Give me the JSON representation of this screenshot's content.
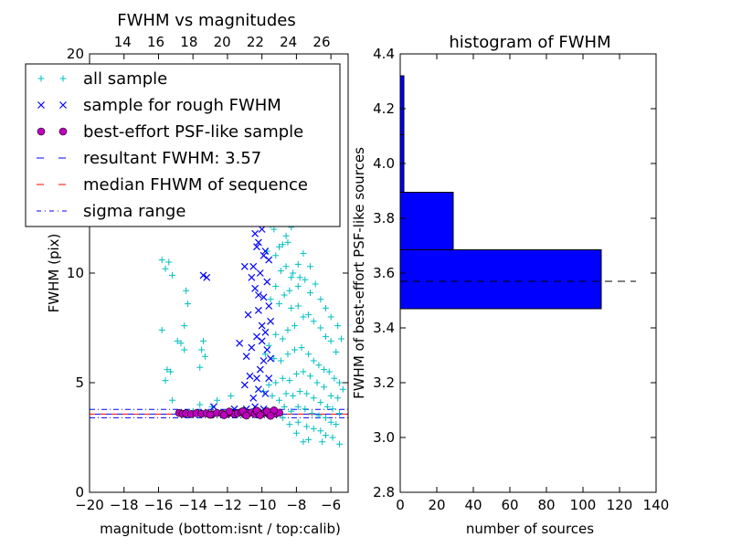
{
  "chart_data": [
    {
      "type": "scatter",
      "title": "FWHM vs magnitudes",
      "xlabel": "magnitude (bottom:isnt / top:calib)",
      "ylabel": "FWHM (pix)",
      "xlim": [
        -20,
        -5
      ],
      "ylim": [
        0,
        20
      ],
      "top_xlim": [
        12,
        27.6
      ],
      "x_ticks": [
        "−20",
        "−18",
        "−16",
        "−14",
        "−12",
        "−10",
        "−8",
        "−6"
      ],
      "x_tick_values": [
        -20,
        -18,
        -16,
        -14,
        -12,
        -10,
        -8,
        -6
      ],
      "top_x_ticks": [
        "14",
        "16",
        "18",
        "20",
        "22",
        "24",
        "26"
      ],
      "top_x_tick_values": [
        14,
        16,
        18,
        20,
        22,
        24,
        26
      ],
      "y_ticks": [
        "0",
        "5",
        "10",
        "20"
      ],
      "y_tick_values": [
        0,
        5,
        10,
        20
      ],
      "legend": {
        "placement": "top-left",
        "entries": [
          {
            "marker": "+",
            "label": "all sample",
            "color": "#00bfbf"
          },
          {
            "marker": "×",
            "label": "sample for rough FWHM",
            "color": "#0000ff"
          },
          {
            "marker": "●",
            "label": "best-effort PSF-like sample",
            "color": "#bf00bf"
          },
          {
            "marker": "dash",
            "label": "resultant FWHM: 3.57",
            "color": "#0000ff"
          },
          {
            "marker": "dash",
            "label": "median FHWM of sequence",
            "color": "#ff0000"
          },
          {
            "marker": "dashdot",
            "label": "sigma range",
            "color": "#0000ff"
          }
        ]
      },
      "lines": {
        "resultant_fwhm": 3.57,
        "median_fwhm": 3.57,
        "sigma_range": [
          3.4,
          3.78
        ]
      },
      "series": [
        {
          "name": "all sample",
          "points": [
            [
              -15.8,
              10.6
            ],
            [
              -15.6,
              10.2
            ],
            [
              -15.4,
              10.5
            ],
            [
              -15.2,
              9.9
            ],
            [
              -14.4,
              9.2
            ],
            [
              -14.3,
              8.6
            ],
            [
              -15.8,
              7.4
            ],
            [
              -14.5,
              7.6
            ],
            [
              -14.7,
              6.8
            ],
            [
              -14.5,
              6.5
            ],
            [
              -14.9,
              6.9
            ],
            [
              -13.4,
              6.9
            ],
            [
              -13.5,
              6.5
            ],
            [
              -13.3,
              6.2
            ],
            [
              -15.5,
              5.6
            ],
            [
              -15.3,
              5.5
            ],
            [
              -13.6,
              5.7
            ],
            [
              -15.6,
              5.1
            ],
            [
              -15.2,
              4.2
            ],
            [
              -12.6,
              4.2
            ],
            [
              -12.9,
              3.9
            ],
            [
              -11.8,
              4.4
            ],
            [
              -13.6,
              4.0
            ],
            [
              -14.0,
              3.7
            ],
            [
              -9.9,
              12.6
            ],
            [
              -9.5,
              12.2
            ],
            [
              -9.7,
              11.0
            ],
            [
              -9.2,
              10.8
            ],
            [
              -8.8,
              11.3
            ],
            [
              -8.5,
              11.4
            ],
            [
              -8.3,
              12.1
            ],
            [
              -8.9,
              12.8
            ],
            [
              -9.3,
              12.0
            ],
            [
              -8.9,
              10.1
            ],
            [
              -8.6,
              10.3
            ],
            [
              -8.2,
              10.0
            ],
            [
              -7.8,
              9.8
            ],
            [
              -7.5,
              9.7
            ],
            [
              -7.2,
              9.1
            ],
            [
              -7.9,
              9.4
            ],
            [
              -8.4,
              9.2
            ],
            [
              -8.7,
              9.0
            ],
            [
              -9.2,
              9.4
            ],
            [
              -9.5,
              8.8
            ],
            [
              -9.0,
              8.6
            ],
            [
              -8.3,
              8.4
            ],
            [
              -7.9,
              8.5
            ],
            [
              -7.6,
              8.0
            ],
            [
              -7.3,
              8.1
            ],
            [
              -7.0,
              7.8
            ],
            [
              -6.6,
              7.5
            ],
            [
              -6.3,
              7.1
            ],
            [
              -6.0,
              6.9
            ],
            [
              -5.7,
              6.4
            ],
            [
              -8.1,
              7.6
            ],
            [
              -8.5,
              7.4
            ],
            [
              -8.8,
              7.0
            ],
            [
              -9.2,
              7.2
            ],
            [
              -9.6,
              6.7
            ],
            [
              -9.8,
              6.3
            ],
            [
              -9.3,
              6.1
            ],
            [
              -8.9,
              6.0
            ],
            [
              -8.5,
              6.3
            ],
            [
              -8.1,
              6.5
            ],
            [
              -7.7,
              6.6
            ],
            [
              -7.3,
              6.3
            ],
            [
              -7.0,
              6.0
            ],
            [
              -6.7,
              5.8
            ],
            [
              -6.4,
              5.6
            ],
            [
              -6.1,
              5.5
            ],
            [
              -5.8,
              5.2
            ],
            [
              -5.5,
              5.0
            ],
            [
              -5.3,
              4.7
            ],
            [
              -5.6,
              4.3
            ],
            [
              -6.0,
              4.4
            ],
            [
              -6.4,
              4.8
            ],
            [
              -6.8,
              5.0
            ],
            [
              -7.2,
              5.3
            ],
            [
              -7.6,
              5.5
            ],
            [
              -8.0,
              5.4
            ],
            [
              -8.4,
              5.1
            ],
            [
              -8.8,
              5.2
            ],
            [
              -9.2,
              5.0
            ],
            [
              -9.6,
              4.9
            ],
            [
              -9.9,
              4.6
            ],
            [
              -9.4,
              4.4
            ],
            [
              -9.0,
              4.2
            ],
            [
              -8.6,
              4.5
            ],
            [
              -8.2,
              4.4
            ],
            [
              -7.8,
              4.6
            ],
            [
              -7.4,
              4.5
            ],
            [
              -7.0,
              4.3
            ],
            [
              -6.6,
              4.1
            ],
            [
              -6.2,
              3.9
            ],
            [
              -5.9,
              3.8
            ],
            [
              -5.5,
              3.6
            ],
            [
              -8.7,
              3.9
            ],
            [
              -8.3,
              3.7
            ],
            [
              -7.9,
              3.9
            ],
            [
              -7.5,
              3.8
            ],
            [
              -7.1,
              3.6
            ],
            [
              -6.7,
              3.5
            ],
            [
              -6.3,
              3.4
            ],
            [
              -6.0,
              3.2
            ],
            [
              -5.7,
              3.1
            ],
            [
              -7.9,
              3.2
            ],
            [
              -7.4,
              3.0
            ],
            [
              -7.0,
              2.9
            ],
            [
              -6.6,
              2.8
            ],
            [
              -6.3,
              2.6
            ],
            [
              -5.9,
              2.5
            ],
            [
              -7.3,
              2.4
            ],
            [
              -6.5,
              2.3
            ],
            [
              -5.5,
              2.2
            ],
            [
              -7.6,
              2.3
            ],
            [
              -8.0,
              2.7
            ],
            [
              -8.4,
              3.1
            ],
            [
              -8.8,
              3.4
            ],
            [
              -9.2,
              3.6
            ],
            [
              -9.6,
              3.7
            ],
            [
              -8.3,
              9.8
            ],
            [
              -7.9,
              10.4
            ],
            [
              -8.6,
              11.7
            ],
            [
              -9.0,
              11.2
            ],
            [
              -7.6,
              10.9
            ],
            [
              -7.2,
              10.3
            ],
            [
              -6.9,
              9.5
            ],
            [
              -6.6,
              8.8
            ],
            [
              -6.3,
              8.4
            ],
            [
              -6.0,
              8.0
            ],
            [
              -5.6,
              7.6
            ],
            [
              -5.4,
              7.0
            ]
          ]
        },
        {
          "name": "sample for rough FWHM",
          "points": [
            [
              -13.4,
              9.9
            ],
            [
              -13.2,
              9.8
            ],
            [
              -10.8,
              8.1
            ],
            [
              -10.2,
              8.3
            ],
            [
              -10.0,
              7.6
            ],
            [
              -10.3,
              7.1
            ],
            [
              -10.6,
              6.6
            ],
            [
              -10.9,
              6.2
            ],
            [
              -11.3,
              6.8
            ],
            [
              -9.9,
              6.0
            ],
            [
              -10.1,
              5.6
            ],
            [
              -10.3,
              5.2
            ],
            [
              -10.7,
              5.3
            ],
            [
              -11.0,
              4.9
            ],
            [
              -10.2,
              4.7
            ],
            [
              -10.5,
              4.3
            ],
            [
              -9.8,
              4.5
            ],
            [
              -9.6,
              5.2
            ],
            [
              -9.9,
              12.8
            ],
            [
              -10.4,
              11.8
            ],
            [
              -10.2,
              11.4
            ],
            [
              -9.8,
              11.0
            ],
            [
              -9.6,
              10.6
            ],
            [
              -10.5,
              10.3
            ],
            [
              -10.1,
              10.0
            ],
            [
              -9.7,
              9.6
            ],
            [
              -10.4,
              9.3
            ],
            [
              -9.9,
              8.9
            ],
            [
              -9.6,
              8.5
            ],
            [
              -10.2,
              9.0
            ],
            [
              -9.5,
              7.8
            ],
            [
              -9.8,
              7.3
            ],
            [
              -10.0,
              6.9
            ],
            [
              -9.7,
              6.5
            ],
            [
              -9.5,
              6.1
            ],
            [
              -10.4,
              12.5
            ],
            [
              -10.0,
              12.0
            ],
            [
              -9.7,
              12.4
            ],
            [
              -10.3,
              11.2
            ],
            [
              -9.9,
              10.8
            ],
            [
              -10.6,
              9.8
            ],
            [
              -11.0,
              10.3
            ],
            [
              -12.8,
              3.9
            ],
            [
              -11.6,
              3.8
            ],
            [
              -10.9,
              3.8
            ],
            [
              -10.4,
              3.9
            ],
            [
              -9.9,
              3.8
            ]
          ]
        },
        {
          "name": "best-effort PSF-like sample",
          "points": [
            [
              -14.8,
              3.62
            ],
            [
              -14.6,
              3.58
            ],
            [
              -14.4,
              3.6
            ],
            [
              -14.1,
              3.57
            ],
            [
              -13.8,
              3.61
            ],
            [
              -13.5,
              3.58
            ],
            [
              -13.2,
              3.6
            ],
            [
              -12.9,
              3.56
            ],
            [
              -12.6,
              3.62
            ],
            [
              -12.3,
              3.59
            ],
            [
              -12.0,
              3.58
            ],
            [
              -11.8,
              3.63
            ],
            [
              -11.6,
              3.57
            ],
            [
              -11.4,
              3.61
            ],
            [
              -11.2,
              3.66
            ],
            [
              -11.0,
              3.55
            ],
            [
              -10.8,
              3.6
            ],
            [
              -10.6,
              3.64
            ],
            [
              -10.4,
              3.57
            ],
            [
              -10.2,
              3.62
            ],
            [
              -10.0,
              3.58
            ],
            [
              -9.8,
              3.65
            ],
            [
              -9.6,
              3.56
            ],
            [
              -9.4,
              3.61
            ],
            [
              -9.2,
              3.59
            ],
            [
              -9.0,
              3.63
            ],
            [
              -11.9,
              3.68
            ],
            [
              -11.1,
              3.7
            ],
            [
              -10.3,
              3.72
            ],
            [
              -9.7,
              3.69
            ],
            [
              -9.3,
              3.74
            ],
            [
              -10.9,
              3.5
            ],
            [
              -10.1,
              3.52
            ],
            [
              -9.5,
              3.49
            ],
            [
              -12.2,
              3.52
            ],
            [
              -13.0,
              3.54
            ]
          ]
        }
      ]
    },
    {
      "type": "bar",
      "orientation": "horizontal",
      "title": "histogram of FWHM",
      "xlabel": "number of sources",
      "ylabel": "FWHM of best-effort PSF-like sources",
      "xlim": [
        0,
        140
      ],
      "ylim": [
        2.8,
        4.4
      ],
      "x_ticks": [
        "0",
        "20",
        "40",
        "60",
        "80",
        "100",
        "120",
        "140"
      ],
      "x_tick_values": [
        0,
        20,
        40,
        60,
        80,
        100,
        120,
        140
      ],
      "y_ticks": [
        "2.8",
        "3.0",
        "3.2",
        "3.4",
        "3.6",
        "3.8",
        "4.0",
        "4.2",
        "4.4"
      ],
      "y_tick_values": [
        2.8,
        3.0,
        3.2,
        3.4,
        3.6,
        3.8,
        4.0,
        4.2,
        4.4
      ],
      "bars": [
        {
          "y0": 3.47,
          "y1": 3.685,
          "count": 110
        },
        {
          "y0": 3.685,
          "y1": 3.895,
          "count": 29
        },
        {
          "y0": 3.895,
          "y1": 4.105,
          "count": 2
        },
        {
          "y0": 4.105,
          "y1": 4.32,
          "count": 2
        }
      ],
      "bar_color": "#0000ff",
      "median_line": 3.57
    }
  ]
}
